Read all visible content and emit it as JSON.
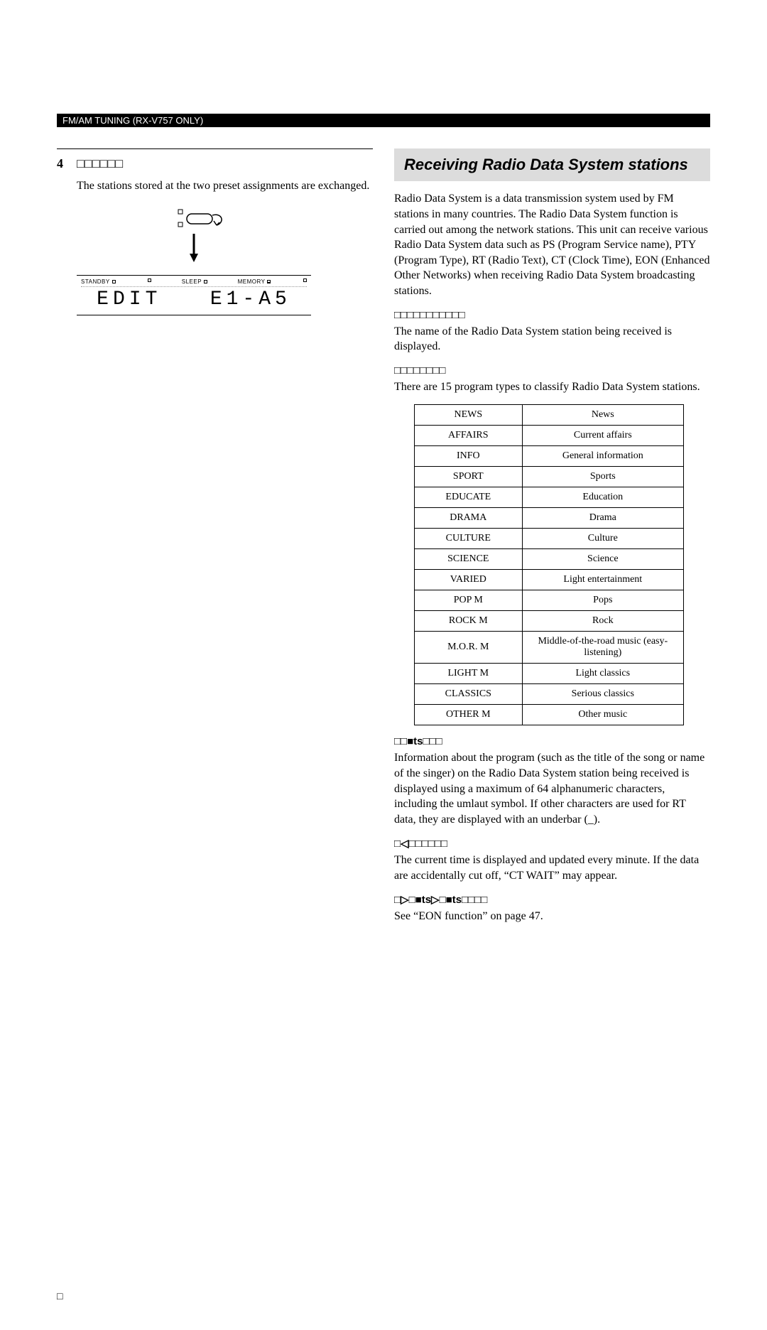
{
  "header": {
    "text": "FM/AM TUNING (RX-V757 ONLY)"
  },
  "left": {
    "step_num": "4",
    "step_label": "□□□□□□",
    "step_body": "The stations stored at the two preset assignments are exchanged.",
    "lcd": {
      "labels": {
        "a": "STANDBY",
        "b": "SLEEP",
        "c": "MEMORY",
        "d1": "□",
        "d2": "□",
        "d3": "□",
        "d4": "□"
      },
      "main_left": "EDIT",
      "main_right": "E1-A5"
    }
  },
  "right": {
    "title": "Receiving Radio Data System stations",
    "intro": "Radio Data System is a data transmission system used by FM stations in many countries. The Radio Data System function is carried out among the network stations. This unit can receive various Radio Data System data such as PS (Program Service name), PTY (Program Type), RT (Radio Text), CT (Clock Time), EON (Enhanced Other Networks) when receiving Radio Data System broadcasting stations.",
    "ps": {
      "head": "□□□□□□□□□□□",
      "body": "The name of the Radio Data System station being received is displayed."
    },
    "pty": {
      "head": "□□□□□□□□",
      "body": "There are 15 program types to classify Radio Data System stations.",
      "rows": [
        [
          "NEWS",
          "News"
        ],
        [
          "AFFAIRS",
          "Current affairs"
        ],
        [
          "INFO",
          "General information"
        ],
        [
          "SPORT",
          "Sports"
        ],
        [
          "EDUCATE",
          "Education"
        ],
        [
          "DRAMA",
          "Drama"
        ],
        [
          "CULTURE",
          "Culture"
        ],
        [
          "SCIENCE",
          "Science"
        ],
        [
          "VARIED",
          "Light entertainment"
        ],
        [
          "POP M",
          "Pops"
        ],
        [
          "ROCK M",
          "Rock"
        ],
        [
          "M.O.R. M",
          "Middle-of-the-road music (easy-listening)"
        ],
        [
          "LIGHT M",
          "Light classics"
        ],
        [
          "CLASSICS",
          "Serious classics"
        ],
        [
          "OTHER M",
          "Other music"
        ]
      ]
    },
    "rt": {
      "head": "□□■ts□□□",
      "body": "Information about the program (such as the title of the song or name of the singer) on the Radio Data System station being received is displayed using a maximum of 64 alphanumeric characters, including the umlaut symbol. If other characters are used for RT data, they are displayed with an underbar (_)."
    },
    "ct": {
      "head": "□◁□□□□□□",
      "body": "The current time is displayed and updated every minute. If the data are accidentally cut off, “CT WAIT” may appear."
    },
    "eon": {
      "head": "□▷□■ts▷□■ts□□□□",
      "body": "See “EON function” on page 47."
    }
  },
  "page_num": "□"
}
